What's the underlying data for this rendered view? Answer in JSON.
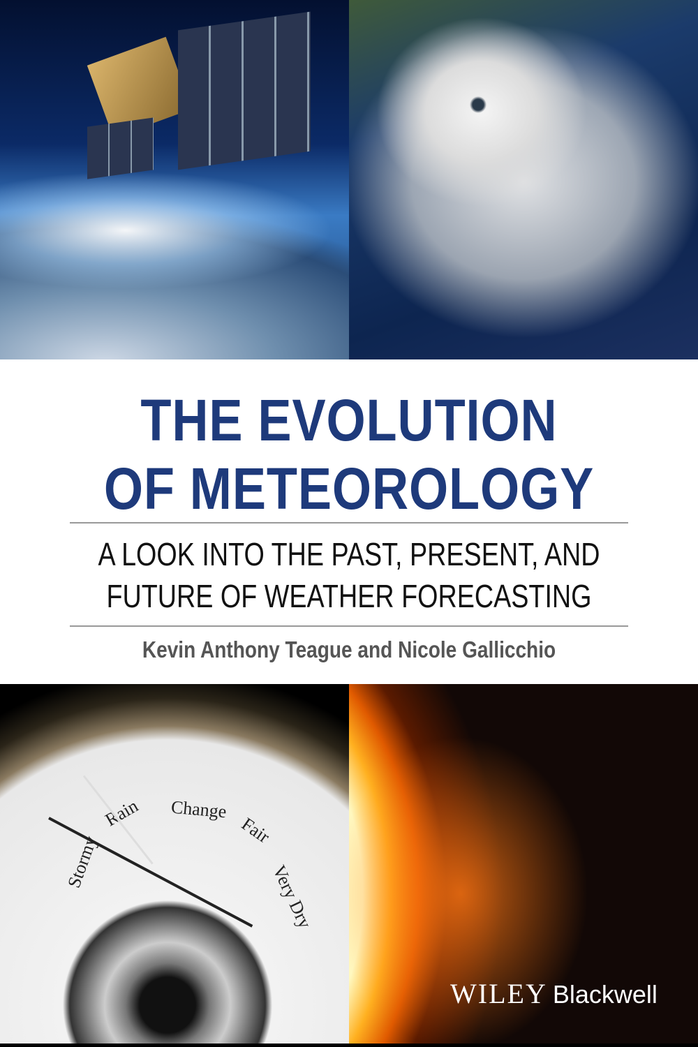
{
  "cover": {
    "title_line1": "THE EVOLUTION",
    "title_line2": "OF METEOROLOGY",
    "subtitle_line1": "A LOOK INTO THE PAST, PRESENT, AND",
    "subtitle_line2": "FUTURE OF WEATHER FORECASTING",
    "authors": "Kevin Anthony Teague and Nicole Gallicchio",
    "publisher_wiley": "WILEY",
    "publisher_blackwell": "Blackwell"
  },
  "images": {
    "top_left": "satellite-over-earth",
    "top_right": "hurricane-satellite-view",
    "bottom_left": "barometer",
    "bottom_right": "sun-solar-flare"
  },
  "barometer_labels": [
    "Stormy",
    "Rain",
    "Change",
    "Fair",
    "Very Dry"
  ],
  "colors": {
    "title": "#1e3a7b",
    "author": "#555555",
    "band": "#ffffff"
  }
}
